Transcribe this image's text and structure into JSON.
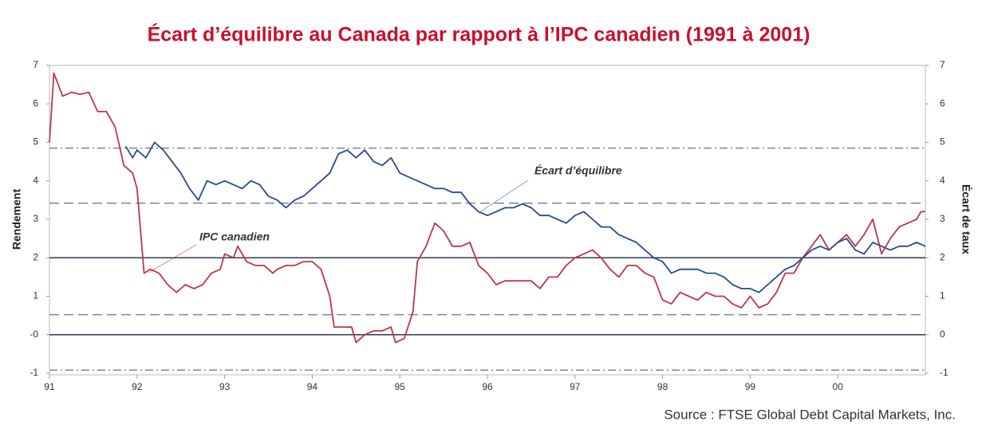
{
  "chart_data": {
    "type": "line",
    "title": "Écart d’équilibre au Canada par rapport à l’IPC canadien (1991 à 2001)",
    "y_label": "Rendement",
    "y2_label": "Écart de taux",
    "source": "Source : FTSE Global Debt Capital Markets, Inc.",
    "xlim": [
      1991,
      2001
    ],
    "xticks": [
      {
        "value": 1991,
        "label": "91"
      },
      {
        "value": 1992,
        "label": "92"
      },
      {
        "value": 1993,
        "label": "93"
      },
      {
        "value": 1994,
        "label": "94"
      },
      {
        "value": 1995,
        "label": "95"
      },
      {
        "value": 1996,
        "label": "96"
      },
      {
        "value": 1997,
        "label": "97"
      },
      {
        "value": 1998,
        "label": "98"
      },
      {
        "value": 1999,
        "label": "99"
      },
      {
        "value": 2000,
        "label": "00"
      }
    ],
    "ylim": [
      -1,
      7
    ],
    "yticks": [
      7,
      6,
      5,
      4,
      3,
      2,
      1,
      {
        "value": 0,
        "label": "-0"
      },
      -1
    ],
    "y2lim": [
      -1,
      7
    ],
    "y2ticks": [
      7,
      6,
      5,
      4,
      3,
      2,
      1,
      0,
      -1
    ],
    "reference_lines": [
      {
        "value": 4.85,
        "style": "dashdot"
      },
      {
        "value": 3.42,
        "style": "dashed"
      },
      {
        "value": 2,
        "style": "solid"
      },
      {
        "value": 0.52,
        "style": "dashed"
      },
      {
        "value": 0,
        "style": "solid"
      },
      {
        "value": -0.92,
        "style": "dashdot"
      }
    ],
    "series": [
      {
        "name": "IPC canadien",
        "color": "#c0344d",
        "x": [
          1991.0,
          1991.05,
          1991.15,
          1991.25,
          1991.35,
          1991.45,
          1991.55,
          1991.65,
          1991.75,
          1991.85,
          1991.95,
          1992.0,
          1992.08,
          1992.15,
          1992.25,
          1992.35,
          1992.45,
          1992.55,
          1992.65,
          1992.75,
          1992.85,
          1992.95,
          1993.0,
          1993.1,
          1993.15,
          1993.25,
          1993.35,
          1993.45,
          1993.55,
          1993.6,
          1993.7,
          1993.8,
          1993.9,
          1994.0,
          1994.1,
          1994.2,
          1994.25,
          1994.35,
          1994.45,
          1994.5,
          1994.6,
          1994.7,
          1994.8,
          1994.9,
          1994.95,
          1995.05,
          1995.15,
          1995.2,
          1995.3,
          1995.4,
          1995.5,
          1995.6,
          1995.7,
          1995.8,
          1995.9,
          1996.0,
          1996.1,
          1996.2,
          1996.3,
          1996.4,
          1996.5,
          1996.6,
          1996.7,
          1996.8,
          1996.9,
          1997.0,
          1997.1,
          1997.2,
          1997.3,
          1997.4,
          1997.5,
          1997.6,
          1997.7,
          1997.8,
          1997.9,
          1998.0,
          1998.1,
          1998.2,
          1998.3,
          1998.4,
          1998.5,
          1998.6,
          1998.7,
          1998.8,
          1998.9,
          1999.0,
          1999.1,
          1999.2,
          1999.3,
          1999.4,
          1999.5,
          1999.6,
          1999.7,
          1999.8,
          1999.9,
          2000.0,
          2000.1,
          2000.2,
          2000.3,
          2000.4,
          2000.5,
          2000.6,
          2000.7,
          2000.8,
          2000.9,
          2000.95,
          2001.0
        ],
        "values": [
          5.0,
          6.8,
          6.2,
          6.3,
          6.25,
          6.3,
          5.8,
          5.8,
          5.4,
          4.4,
          4.2,
          3.8,
          1.6,
          1.7,
          1.6,
          1.3,
          1.1,
          1.3,
          1.2,
          1.3,
          1.6,
          1.7,
          2.1,
          2.0,
          2.3,
          1.9,
          1.8,
          1.8,
          1.6,
          1.7,
          1.8,
          1.8,
          1.9,
          1.9,
          1.7,
          1.0,
          0.2,
          0.2,
          0.2,
          -0.2,
          0.0,
          0.1,
          0.1,
          0.2,
          -0.2,
          -0.1,
          0.6,
          1.9,
          2.3,
          2.9,
          2.7,
          2.3,
          2.3,
          2.4,
          1.8,
          1.6,
          1.3,
          1.4,
          1.4,
          1.4,
          1.4,
          1.2,
          1.5,
          1.5,
          1.8,
          2.0,
          2.1,
          2.2,
          2.0,
          1.7,
          1.5,
          1.8,
          1.8,
          1.6,
          1.5,
          0.9,
          0.8,
          1.1,
          1.0,
          0.9,
          1.1,
          1.0,
          1.0,
          0.8,
          0.7,
          1.0,
          0.7,
          0.8,
          1.1,
          1.6,
          1.6,
          2.0,
          2.3,
          2.6,
          2.2,
          2.4,
          2.6,
          2.3,
          2.6,
          3.0,
          2.1,
          2.5,
          2.8,
          2.9,
          3.0,
          3.2,
          3.2
        ]
      },
      {
        "name": "Écart d’équilibre",
        "color": "#2a4a8f",
        "axis": "y2",
        "x": [
          1991.87,
          1991.95,
          1992.0,
          1992.1,
          1992.2,
          1992.3,
          1992.4,
          1992.5,
          1992.6,
          1992.7,
          1992.8,
          1992.9,
          1993.0,
          1993.1,
          1993.2,
          1993.3,
          1993.4,
          1993.5,
          1993.6,
          1993.7,
          1993.8,
          1993.9,
          1994.0,
          1994.1,
          1994.2,
          1994.3,
          1994.4,
          1994.5,
          1994.6,
          1994.7,
          1994.8,
          1994.9,
          1995.0,
          1995.1,
          1995.2,
          1995.3,
          1995.4,
          1995.5,
          1995.6,
          1995.7,
          1995.8,
          1995.9,
          1996.0,
          1996.1,
          1996.2,
          1996.3,
          1996.4,
          1996.5,
          1996.6,
          1996.7,
          1996.8,
          1996.9,
          1997.0,
          1997.1,
          1997.2,
          1997.3,
          1997.4,
          1997.5,
          1997.6,
          1997.7,
          1997.8,
          1997.9,
          1998.0,
          1998.1,
          1998.2,
          1998.3,
          1998.4,
          1998.5,
          1998.6,
          1998.7,
          1998.8,
          1998.9,
          1999.0,
          1999.1,
          1999.2,
          1999.3,
          1999.4,
          1999.5,
          1999.6,
          1999.7,
          1999.8,
          1999.9,
          2000.0,
          2000.1,
          2000.2,
          2000.3,
          2000.4,
          2000.5,
          2000.6,
          2000.7,
          2000.8,
          2000.9,
          2001.0
        ],
        "values": [
          4.9,
          4.6,
          4.8,
          4.6,
          5.0,
          4.8,
          4.5,
          4.2,
          3.8,
          3.5,
          4.0,
          3.9,
          4.0,
          3.9,
          3.8,
          4.0,
          3.9,
          3.6,
          3.5,
          3.3,
          3.5,
          3.6,
          3.8,
          4.0,
          4.2,
          4.7,
          4.8,
          4.6,
          4.8,
          4.5,
          4.4,
          4.6,
          4.2,
          4.1,
          4.0,
          3.9,
          3.8,
          3.8,
          3.7,
          3.7,
          3.4,
          3.2,
          3.1,
          3.2,
          3.3,
          3.3,
          3.4,
          3.3,
          3.1,
          3.1,
          3.0,
          2.9,
          3.1,
          3.2,
          3.0,
          2.8,
          2.8,
          2.6,
          2.5,
          2.4,
          2.2,
          2.0,
          1.9,
          1.6,
          1.7,
          1.7,
          1.7,
          1.6,
          1.6,
          1.5,
          1.3,
          1.2,
          1.2,
          1.1,
          1.3,
          1.5,
          1.7,
          1.8,
          2.0,
          2.2,
          2.3,
          2.2,
          2.4,
          2.5,
          2.2,
          2.1,
          2.4,
          2.3,
          2.2,
          2.3,
          2.3,
          2.4,
          2.3
        ]
      }
    ]
  }
}
